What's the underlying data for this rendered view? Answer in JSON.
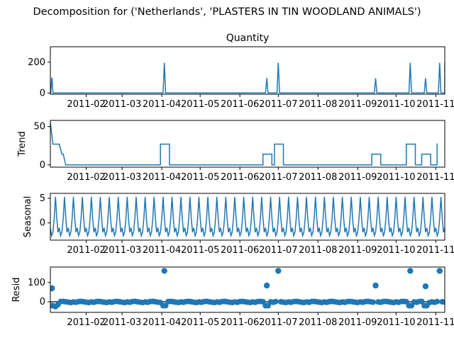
{
  "figure": {
    "suptitle": "Decomposition for ('Netherlands', 'PLASTERS IN TIN WOODLAND ANIMALS')"
  },
  "colors": {
    "line": "#1f77b4",
    "axes": "#000000",
    "background": "#ffffff"
  },
  "chart_data": [
    {
      "type": "line",
      "title": "Quantity",
      "ylabel": "",
      "ylim": [
        -8,
        300
      ],
      "yticks": [
        0,
        200
      ],
      "xticks": [
        "2011-02",
        "2011-03",
        "2011-04",
        "2011-05",
        "2011-06",
        "2011-07",
        "2011-08",
        "2011-09",
        "2011-10",
        "2011-11"
      ],
      "spikes": [
        [
          1.05,
          96
        ],
        [
          1.3,
          96
        ],
        [
          89.0,
          196
        ],
        [
          169.0,
          96
        ],
        [
          178.0,
          196
        ],
        [
          254.0,
          96
        ],
        [
          281.0,
          196
        ],
        [
          293.0,
          96
        ],
        [
          304.0,
          196
        ]
      ],
      "baseline": 0
    },
    {
      "type": "line",
      "title": "",
      "ylabel": "Trend",
      "ylim": [
        -3,
        58
      ],
      "yticks": [
        0,
        50
      ],
      "xticks": [
        "2011-02",
        "2011-03",
        "2011-04",
        "2011-05",
        "2011-06",
        "2011-07",
        "2011-08",
        "2011-09",
        "2011-10",
        "2011-11"
      ],
      "steps": [
        [
          0,
          55
        ],
        [
          2,
          27
        ],
        [
          7,
          27
        ],
        [
          9,
          14
        ],
        [
          10,
          14
        ],
        [
          12,
          0
        ],
        [
          86,
          0
        ],
        [
          86,
          27
        ],
        [
          93,
          27
        ],
        [
          93,
          0
        ],
        [
          166,
          0
        ],
        [
          166,
          14
        ],
        [
          173,
          14
        ],
        [
          173,
          0
        ],
        [
          175,
          0
        ],
        [
          175,
          27
        ],
        [
          182,
          27
        ],
        [
          182,
          0
        ],
        [
          251,
          0
        ],
        [
          251,
          14
        ],
        [
          258,
          14
        ],
        [
          258,
          0
        ],
        [
          278,
          0
        ],
        [
          278,
          27
        ],
        [
          285,
          27
        ],
        [
          285,
          0
        ],
        [
          290,
          0
        ],
        [
          290,
          14
        ],
        [
          297,
          14
        ],
        [
          297,
          0
        ],
        [
          302,
          0
        ],
        [
          302,
          28
        ]
      ]
    },
    {
      "type": "line",
      "title": "",
      "ylabel": "Seasonal",
      "ylim": [
        -3.5,
        6
      ],
      "yticks": [
        0,
        5
      ],
      "xticks": [
        "2011-02",
        "2011-03",
        "2011-04",
        "2011-05",
        "2011-06",
        "2011-07",
        "2011-08",
        "2011-09",
        "2011-10",
        "2011-11"
      ],
      "period": 7,
      "pattern": [
        5.3,
        1.0,
        -1.9,
        -1.0,
        -2.6,
        -1.9,
        0.9
      ],
      "start_offset": 3
    },
    {
      "type": "scatter",
      "title": "",
      "ylabel": "Resid",
      "ylim": [
        -55,
        180
      ],
      "yticks": [
        0,
        100
      ],
      "xticks": [
        "2011-02",
        "2011-03",
        "2011-04",
        "2011-05",
        "2011-06",
        "2011-07",
        "2011-08",
        "2011-09",
        "2011-10",
        "2011-11"
      ],
      "baseline": 0,
      "outliers": [
        [
          1.05,
          70
        ],
        [
          1.3,
          70
        ],
        [
          89.0,
          160
        ],
        [
          169.0,
          84
        ],
        [
          178.0,
          160
        ],
        [
          254.0,
          84
        ],
        [
          281.0,
          160
        ],
        [
          293.0,
          80
        ],
        [
          304.0,
          160
        ]
      ]
    }
  ]
}
